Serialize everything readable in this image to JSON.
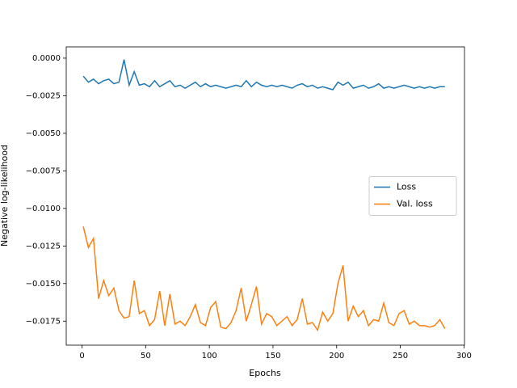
{
  "chart_data": {
    "type": "line",
    "x_label": "Epochs",
    "y_label": "Negative log-likelihood",
    "x": [
      1,
      5,
      9,
      13,
      17,
      21,
      25,
      29,
      33,
      37,
      41,
      45,
      49,
      53,
      57,
      61,
      65,
      69,
      73,
      77,
      81,
      85,
      89,
      93,
      97,
      101,
      105,
      109,
      113,
      117,
      121,
      125,
      129,
      133,
      137,
      141,
      145,
      149,
      153,
      157,
      161,
      165,
      169,
      173,
      177,
      181,
      185,
      189,
      193,
      197,
      201,
      205,
      209,
      213,
      217,
      221,
      225,
      229,
      233,
      237,
      241,
      245,
      249,
      253,
      257,
      261,
      265,
      269,
      273,
      277,
      281,
      285
    ],
    "series": [
      {
        "name": "Loss",
        "color": "#1f77b4",
        "values": [
          -0.0012,
          -0.0016,
          -0.0014,
          -0.0017,
          -0.0015,
          -0.0014,
          -0.0017,
          -0.0016,
          -0.0001,
          -0.0018,
          -0.0009,
          -0.0018,
          -0.0017,
          -0.0019,
          -0.0015,
          -0.0019,
          -0.0017,
          -0.0015,
          -0.0019,
          -0.0018,
          -0.002,
          -0.0018,
          -0.0016,
          -0.0019,
          -0.0017,
          -0.0019,
          -0.0018,
          -0.0019,
          -0.002,
          -0.0019,
          -0.0018,
          -0.0019,
          -0.0015,
          -0.0019,
          -0.0016,
          -0.0018,
          -0.0019,
          -0.0018,
          -0.0019,
          -0.0018,
          -0.0019,
          -0.002,
          -0.0018,
          -0.0017,
          -0.0019,
          -0.0018,
          -0.002,
          -0.0019,
          -0.002,
          -0.0021,
          -0.0016,
          -0.0018,
          -0.0016,
          -0.002,
          -0.0019,
          -0.0018,
          -0.002,
          -0.0019,
          -0.0017,
          -0.002,
          -0.0019,
          -0.002,
          -0.0019,
          -0.0018,
          -0.0019,
          -0.002,
          -0.0019,
          -0.002,
          -0.0019,
          -0.002,
          -0.0019,
          -0.0019
        ]
      },
      {
        "name": "Val. loss",
        "color": "#ff7f0e",
        "values": [
          -0.0112,
          -0.0126,
          -0.012,
          -0.016,
          -0.0148,
          -0.0158,
          -0.0153,
          -0.0168,
          -0.0173,
          -0.0172,
          -0.0148,
          -0.017,
          -0.0168,
          -0.0178,
          -0.0174,
          -0.0155,
          -0.0178,
          -0.0157,
          -0.0177,
          -0.0175,
          -0.0178,
          -0.0172,
          -0.0164,
          -0.0176,
          -0.0178,
          -0.0166,
          -0.0162,
          -0.0179,
          -0.018,
          -0.0176,
          -0.0168,
          -0.0153,
          -0.0175,
          -0.0164,
          -0.0152,
          -0.0177,
          -0.017,
          -0.0172,
          -0.0178,
          -0.0175,
          -0.0172,
          -0.0178,
          -0.0174,
          -0.016,
          -0.0177,
          -0.0176,
          -0.0181,
          -0.0169,
          -0.0175,
          -0.017,
          -0.015,
          -0.0138,
          -0.0175,
          -0.0165,
          -0.0172,
          -0.0168,
          -0.0178,
          -0.0174,
          -0.0175,
          -0.0163,
          -0.0176,
          -0.0178,
          -0.017,
          -0.0168,
          -0.0177,
          -0.0175,
          -0.0178,
          -0.0178,
          -0.0179,
          -0.0178,
          -0.0174,
          -0.018
        ]
      }
    ],
    "xlim": [
      -12.4,
      300.4
    ],
    "xticks": [
      0,
      50,
      100,
      150,
      200,
      250,
      300
    ],
    "ylim": [
      -0.0191,
      0.00075
    ],
    "yticks": [
      {
        "value": 0,
        "label": "0.0000"
      },
      {
        "value": -0.0025,
        "label": "−0.0025"
      },
      {
        "value": -0.005,
        "label": "−0.0050"
      },
      {
        "value": -0.0075,
        "label": "−0.0075"
      },
      {
        "value": -0.01,
        "label": "−0.0100"
      },
      {
        "value": -0.0125,
        "label": "−0.0125"
      },
      {
        "value": -0.015,
        "label": "−0.0150"
      },
      {
        "value": -0.0175,
        "label": "−0.0175"
      }
    ],
    "legend": "center right"
  }
}
